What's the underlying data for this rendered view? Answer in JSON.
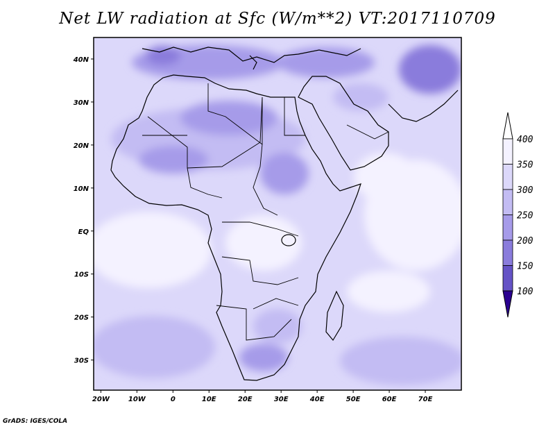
{
  "title": "Net LW radiation at Sfc (W/m**2) VT:2017110709",
  "credit": "GrADS: IGES/COLA",
  "map": {
    "lat_labels": [
      "40N",
      "30N",
      "20N",
      "10N",
      "EQ",
      "10S",
      "20S",
      "30S"
    ],
    "lon_labels": [
      "20W",
      "10W",
      "0",
      "10E",
      "20E",
      "30E",
      "40E",
      "50E",
      "60E",
      "70E"
    ],
    "lat_range": [
      -37,
      45
    ],
    "lon_range": [
      -22,
      80
    ]
  },
  "colorbar": {
    "levels": [
      "400",
      "350",
      "300",
      "250",
      "200",
      "150",
      "100"
    ],
    "colors": [
      "#f4f2ff",
      "#dcd8fa",
      "#c3bcf3",
      "#a69be9",
      "#8a7cdc",
      "#6553c6",
      "#3a1faa"
    ],
    "top_arrow_color": "#ffffff",
    "bottom_arrow_color": "#2a0090"
  }
}
